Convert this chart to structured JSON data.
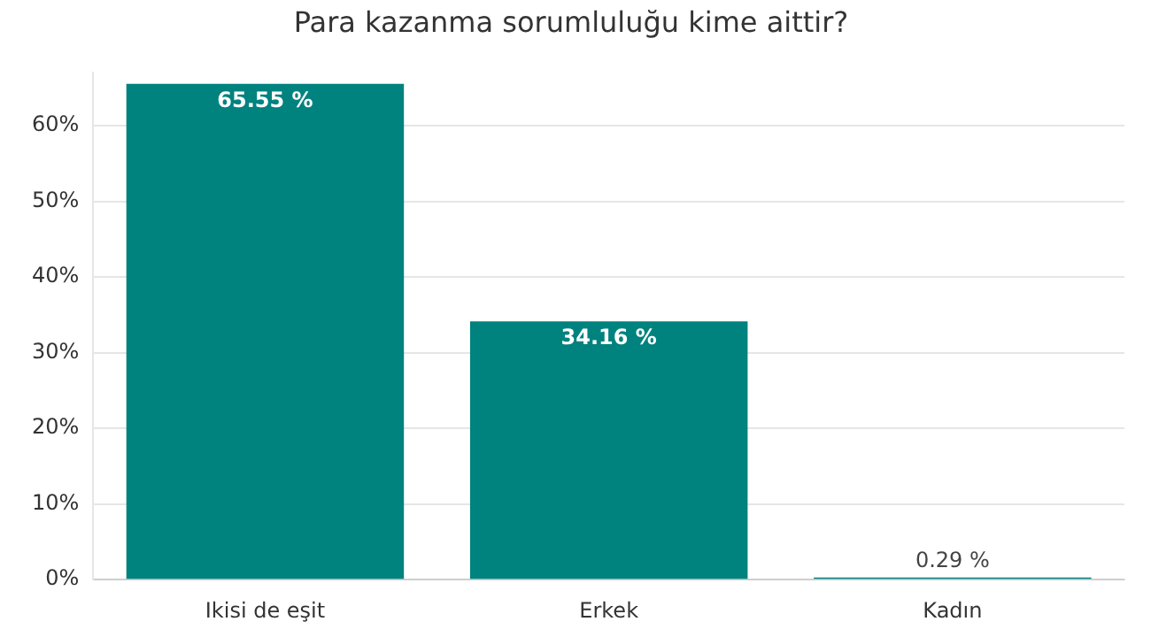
{
  "chart_data": {
    "type": "bar",
    "title": "Para kazanma sorumluluğu kime aittir?",
    "categories": [
      "Ikisi de eşit",
      "Erkek",
      "Kadın"
    ],
    "values": [
      65.55,
      34.16,
      0.29
    ],
    "value_labels": [
      "65.55 %",
      "34.16 %",
      "0.29 %"
    ],
    "color": "#00827f",
    "ylim": [
      0,
      67
    ],
    "yticks": [
      {
        "value": 0,
        "label": "0%"
      },
      {
        "value": 10,
        "label": "10%"
      },
      {
        "value": 20,
        "label": "20%"
      },
      {
        "value": 30,
        "label": "30%"
      },
      {
        "value": 40,
        "label": "40%"
      },
      {
        "value": 50,
        "label": "50%"
      },
      {
        "value": 60,
        "label": "60%"
      }
    ],
    "grid": "y",
    "legend": false
  }
}
